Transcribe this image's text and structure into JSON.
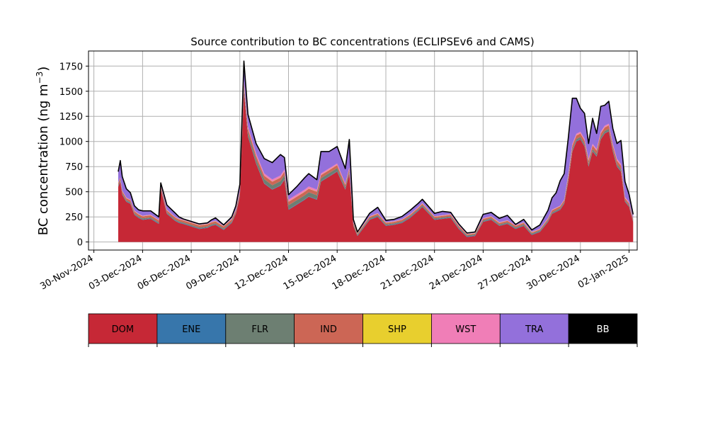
{
  "chart_data": {
    "type": "area",
    "title": "Source contribution to BC concentrations (ECLIPSEv6 and CAMS)",
    "ylabel": "BC concentration (ng m",
    "ylabel_sup": "−3",
    "ylabel_close": ")",
    "xlabel": "",
    "ylim": [
      -80,
      1900
    ],
    "xlim": [
      "2024-11-29T16:00",
      "2025-01-02T12:00"
    ],
    "grid": true,
    "stacked": true,
    "y_ticks": [
      0,
      250,
      500,
      750,
      1000,
      1250,
      1500,
      1750
    ],
    "x_tick_labels": [
      "30-Nov-2024",
      "03-Dec-2024",
      "06-Dec-2024",
      "09-Dec-2024",
      "12-Dec-2024",
      "15-Dec-2024",
      "18-Dec-2024",
      "21-Dec-2024",
      "24-Dec-2024",
      "27-Dec-2024",
      "30-Dec-2024",
      "02-Jan-2025"
    ],
    "x_tick_dates": [
      "2024-11-30",
      "2024-12-03",
      "2024-12-06",
      "2024-12-09",
      "2024-12-12",
      "2024-12-15",
      "2024-12-18",
      "2024-12-21",
      "2024-12-24",
      "2024-12-27",
      "2024-12-30",
      "2025-01-02"
    ],
    "x": [
      "2024-12-01T12:00",
      "2024-12-01T15:00",
      "2024-12-01T18:00",
      "2024-12-02T00:00",
      "2024-12-02T06:00",
      "2024-12-02T12:00",
      "2024-12-02T18:00",
      "2024-12-03T00:00",
      "2024-12-03T12:00",
      "2024-12-04T00:00",
      "2024-12-04T03:00",
      "2024-12-04T12:00",
      "2024-12-05T00:00",
      "2024-12-05T06:00",
      "2024-12-05T12:00",
      "2024-12-06T12:00",
      "2024-12-07T00:00",
      "2024-12-07T06:00",
      "2024-12-07T12:00",
      "2024-12-08T00:00",
      "2024-12-08T12:00",
      "2024-12-08T18:00",
      "2024-12-09T00:00",
      "2024-12-09T06:00",
      "2024-12-09T12:00",
      "2024-12-10T00:00",
      "2024-12-10T12:00",
      "2024-12-11T00:00",
      "2024-12-11T12:00",
      "2024-12-11T18:00",
      "2024-12-12T00:00",
      "2024-12-12T12:00",
      "2024-12-13T00:00",
      "2024-12-13T06:00",
      "2024-12-13T18:00",
      "2024-12-14T00:00",
      "2024-12-14T12:00",
      "2024-12-15T00:00",
      "2024-12-15T12:00",
      "2024-12-15T18:00",
      "2024-12-16T00:00",
      "2024-12-16T06:00",
      "2024-12-17T00:00",
      "2024-12-17T12:00",
      "2024-12-18T00:00",
      "2024-12-18T12:00",
      "2024-12-19T00:00",
      "2024-12-19T12:00",
      "2024-12-20T00:00",
      "2024-12-20T06:00",
      "2024-12-21T00:00",
      "2024-12-21T12:00",
      "2024-12-22T00:00",
      "2024-12-22T12:00",
      "2024-12-23T00:00",
      "2024-12-23T12:00",
      "2024-12-24T00:00",
      "2024-12-24T12:00",
      "2024-12-25T00:00",
      "2024-12-25T12:00",
      "2024-12-26T00:00",
      "2024-12-26T12:00",
      "2024-12-27T00:00",
      "2024-12-27T12:00",
      "2024-12-28T00:00",
      "2024-12-28T06:00",
      "2024-12-28T12:00",
      "2024-12-28T18:00",
      "2024-12-29T00:00",
      "2024-12-29T06:00",
      "2024-12-29T12:00",
      "2024-12-29T18:00",
      "2024-12-30T00:00",
      "2024-12-30T06:00",
      "2024-12-30T12:00",
      "2024-12-30T18:00",
      "2024-12-31T00:00",
      "2024-12-31T06:00",
      "2024-12-31T12:00",
      "2024-12-31T18:00",
      "2025-01-01T00:00",
      "2025-01-01T06:00",
      "2025-01-01T12:00",
      "2025-01-01T18:00",
      "2025-01-02T00:00",
      "2025-01-02T06:00"
    ],
    "series": [
      {
        "name": "DOM",
        "color": "#c62836",
        "values": [
          550,
          600,
          470,
          400,
          380,
          270,
          240,
          220,
          230,
          180,
          520,
          280,
          210,
          190,
          180,
          130,
          140,
          160,
          170,
          120,
          190,
          280,
          450,
          1500,
          1050,
          780,
          580,
          520,
          560,
          620,
          320,
          370,
          420,
          450,
          420,
          600,
          650,
          700,
          520,
          680,
          160,
          60,
          220,
          250,
          160,
          170,
          190,
          240,
          310,
          350,
          220,
          230,
          240,
          130,
          50,
          60,
          200,
          220,
          160,
          180,
          130,
          160,
          70,
          100,
          200,
          280,
          300,
          320,
          380,
          600,
          900,
          1000,
          1020,
          950,
          750,
          900,
          850,
          1020,
          1080,
          1100,
          900,
          750,
          700,
          400,
          350,
          200
        ]
      },
      {
        "name": "ENE",
        "color": "#3776ab",
        "values": [
          5,
          5,
          5,
          5,
          5,
          5,
          5,
          5,
          5,
          5,
          5,
          5,
          5,
          5,
          5,
          5,
          5,
          5,
          5,
          5,
          5,
          5,
          5,
          5,
          5,
          5,
          5,
          5,
          5,
          5,
          5,
          5,
          5,
          5,
          5,
          5,
          5,
          5,
          5,
          5,
          5,
          5,
          5,
          5,
          5,
          5,
          5,
          5,
          5,
          5,
          5,
          5,
          5,
          5,
          5,
          5,
          5,
          5,
          5,
          5,
          5,
          5,
          5,
          5,
          5,
          5,
          5,
          5,
          5,
          5,
          5,
          5,
          5,
          5,
          5,
          5,
          5,
          5,
          5,
          5,
          5,
          5,
          5,
          5,
          5,
          5
        ]
      },
      {
        "name": "FLR",
        "color": "#6d7f72",
        "values": [
          10,
          10,
          10,
          10,
          10,
          10,
          10,
          10,
          10,
          10,
          10,
          10,
          10,
          10,
          10,
          10,
          10,
          10,
          10,
          10,
          10,
          10,
          20,
          40,
          40,
          40,
          40,
          40,
          40,
          40,
          40,
          40,
          40,
          40,
          40,
          30,
          30,
          30,
          20,
          20,
          10,
          10,
          10,
          10,
          10,
          10,
          10,
          10,
          10,
          10,
          10,
          10,
          10,
          10,
          10,
          10,
          10,
          10,
          10,
          10,
          10,
          10,
          10,
          10,
          10,
          10,
          10,
          10,
          10,
          20,
          20,
          20,
          20,
          20,
          20,
          20,
          20,
          20,
          20,
          20,
          20,
          20,
          20,
          10,
          10,
          10
        ]
      },
      {
        "name": "IND",
        "color": "#cc6655",
        "values": [
          20,
          20,
          20,
          20,
          20,
          20,
          20,
          20,
          20,
          20,
          20,
          20,
          20,
          20,
          20,
          20,
          20,
          20,
          20,
          20,
          20,
          20,
          25,
          35,
          35,
          35,
          35,
          35,
          35,
          35,
          35,
          35,
          35,
          35,
          35,
          30,
          30,
          30,
          25,
          25,
          15,
          10,
          15,
          15,
          15,
          15,
          15,
          15,
          15,
          15,
          15,
          15,
          15,
          15,
          10,
          10,
          15,
          15,
          15,
          15,
          15,
          15,
          10,
          10,
          15,
          20,
          20,
          20,
          20,
          30,
          35,
          35,
          35,
          35,
          35,
          35,
          35,
          35,
          35,
          35,
          35,
          35,
          35,
          20,
          20,
          15
        ]
      },
      {
        "name": "SHP",
        "color": "#e8cf2e",
        "values": [
          2,
          2,
          2,
          2,
          2,
          2,
          2,
          2,
          2,
          2,
          2,
          2,
          2,
          2,
          2,
          2,
          2,
          2,
          2,
          2,
          2,
          2,
          2,
          2,
          2,
          2,
          2,
          2,
          2,
          2,
          2,
          2,
          2,
          2,
          2,
          2,
          2,
          2,
          2,
          2,
          2,
          2,
          2,
          2,
          2,
          2,
          2,
          2,
          2,
          2,
          2,
          2,
          2,
          2,
          2,
          2,
          2,
          2,
          2,
          2,
          2,
          2,
          2,
          2,
          2,
          2,
          2,
          2,
          2,
          2,
          2,
          2,
          2,
          2,
          2,
          2,
          2,
          2,
          2,
          2,
          2,
          2,
          2,
          2,
          2,
          2
        ]
      },
      {
        "name": "WST",
        "color": "#f07eb7",
        "values": [
          5,
          5,
          5,
          5,
          5,
          5,
          5,
          5,
          5,
          5,
          5,
          5,
          5,
          5,
          5,
          5,
          5,
          5,
          5,
          5,
          5,
          5,
          10,
          20,
          20,
          20,
          20,
          20,
          20,
          20,
          20,
          20,
          20,
          20,
          20,
          15,
          15,
          15,
          10,
          10,
          5,
          5,
          5,
          5,
          5,
          5,
          5,
          5,
          5,
          5,
          5,
          5,
          5,
          5,
          5,
          5,
          5,
          5,
          5,
          5,
          5,
          5,
          5,
          5,
          5,
          5,
          5,
          5,
          5,
          15,
          15,
          15,
          15,
          15,
          15,
          15,
          15,
          15,
          15,
          15,
          15,
          15,
          15,
          10,
          10,
          5
        ]
      },
      {
        "name": "TRA",
        "color": "#9370db",
        "values": [
          108,
          168,
          138,
          88,
          68,
          48,
          38,
          48,
          38,
          28,
          26,
          46,
          38,
          18,
          8,
          8,
          8,
          18,
          28,
          8,
          18,
          38,
          63,
          198,
          118,
          98,
          148,
          168,
          208,
          118,
          48,
          78,
          118,
          128,
          98,
          218,
          168,
          168,
          148,
          278,
          28,
          8,
          28,
          58,
          18,
          18,
          28,
          38,
          38,
          38,
          28,
          38,
          18,
          13,
          8,
          8,
          38,
          38,
          38,
          48,
          8,
          28,
          18,
          38,
          78,
          118,
          148,
          248,
          258,
          358,
          453,
          353,
          233,
          253,
          153,
          253,
          153,
          253,
          203,
          223,
          153,
          153,
          233,
          153,
          78,
          38
        ]
      }
    ],
    "total": {
      "name": "BB",
      "color": "#000000"
    },
    "legend_entries": [
      "DOM",
      "ENE",
      "FLR",
      "IND",
      "SHP",
      "WST",
      "TRA",
      "BB"
    ],
    "legend_colors": [
      "#c62836",
      "#3776ab",
      "#6d7f72",
      "#cc6655",
      "#e8cf2e",
      "#f07eb7",
      "#9370db",
      "#000000"
    ],
    "legend_text_colors": [
      "#000000",
      "#000000",
      "#000000",
      "#000000",
      "#000000",
      "#000000",
      "#000000",
      "#ffffff"
    ],
    "legend_placement": "bottom"
  }
}
